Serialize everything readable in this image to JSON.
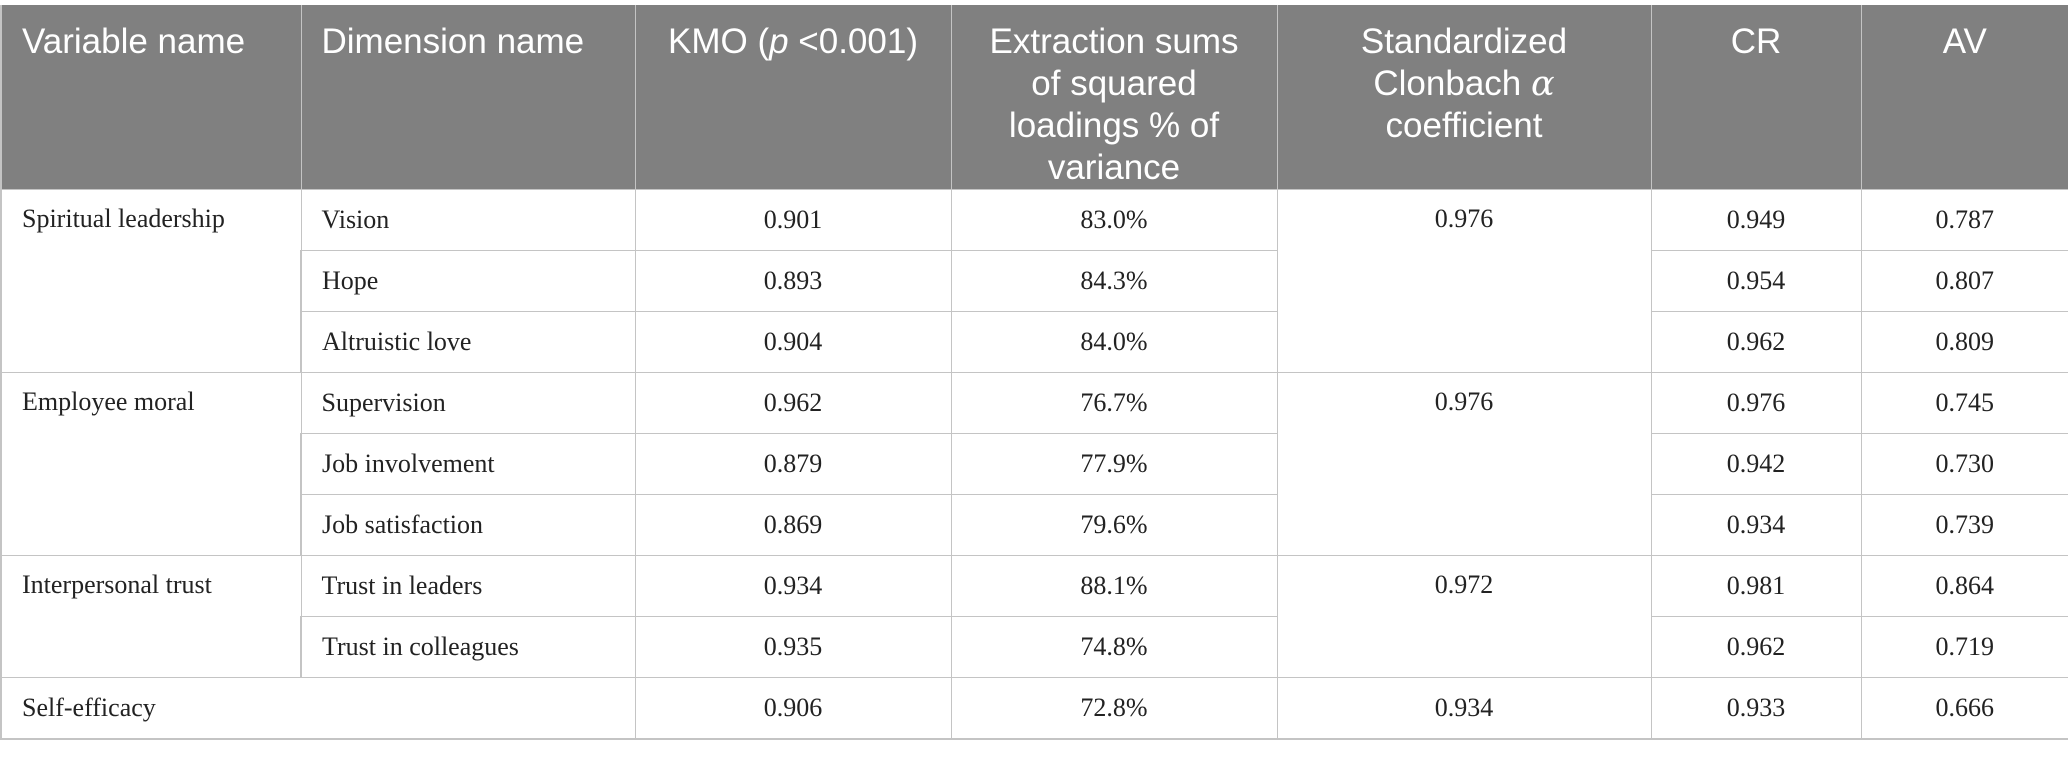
{
  "table": {
    "headers": {
      "variable_name": "Variable name",
      "dimension_name": "Dimension name",
      "kmo_prefix": "KMO (",
      "kmo_p": "p",
      "kmo_suffix": " <0.001)",
      "extraction": "Extraction sums of squared loadings % of variance",
      "cronbach_prefix": "Standardized Clonbach ",
      "cronbach_alpha": "α",
      "cronbach_suffix": " coefficient",
      "cr": "CR",
      "av": "AV"
    },
    "groups": [
      {
        "variable": "Spiritual leadership",
        "alpha": "0.976",
        "rows": [
          {
            "dimension": "Vision",
            "kmo": "0.901",
            "extraction": "83.0%",
            "cr": "0.949",
            "av": "0.787"
          },
          {
            "dimension": "Hope",
            "kmo": "0.893",
            "extraction": "84.3%",
            "cr": "0.954",
            "av": "0.807"
          },
          {
            "dimension": "Altruistic love",
            "kmo": "0.904",
            "extraction": "84.0%",
            "cr": "0.962",
            "av": "0.809"
          }
        ]
      },
      {
        "variable": "Employee moral",
        "alpha": "0.976",
        "rows": [
          {
            "dimension": "Supervision",
            "kmo": "0.962",
            "extraction": "76.7%",
            "cr": "0.976",
            "av": "0.745"
          },
          {
            "dimension": "Job involvement",
            "kmo": "0.879",
            "extraction": "77.9%",
            "cr": "0.942",
            "av": "0.730"
          },
          {
            "dimension": "Job satisfaction",
            "kmo": "0.869",
            "extraction": "79.6%",
            "cr": "0.934",
            "av": "0.739"
          }
        ]
      },
      {
        "variable": "Interpersonal trust",
        "alpha": "0.972",
        "rows": [
          {
            "dimension": "Trust in leaders",
            "kmo": "0.934",
            "extraction": "88.1%",
            "cr": "0.981",
            "av": "0.864"
          },
          {
            "dimension": "Trust in colleagues",
            "kmo": "0.935",
            "extraction": "74.8%",
            "cr": "0.962",
            "av": "0.719"
          }
        ]
      }
    ],
    "self_efficacy": {
      "variable": "Self-efficacy",
      "kmo": "0.906",
      "extraction": "72.8%",
      "alpha": "0.934",
      "cr": "0.933",
      "av": "0.666"
    }
  }
}
